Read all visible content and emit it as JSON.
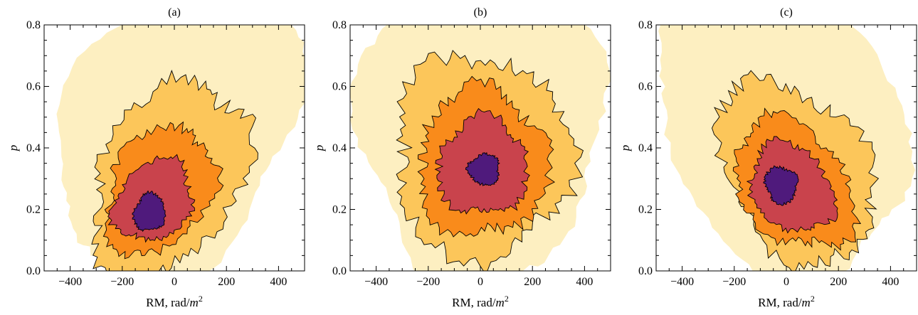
{
  "chart_data": [
    {
      "type": "contour",
      "title": "(a)",
      "xlabel": "RM, rad/m",
      "xlabel_sup": "2",
      "ylabel": "p",
      "xlim": [
        -500,
        500
      ],
      "ylim": [
        0,
        0.8
      ],
      "xticks": [
        "-400",
        "-200",
        "0",
        "200",
        "400"
      ],
      "yticks": [
        "0.0",
        "0.2",
        "0.4",
        "0.6",
        "0.8"
      ],
      "peak": {
        "x": -90,
        "y": 0.19
      },
      "levels": [
        {
          "level": 1,
          "color": "#fdefc1",
          "center": [
            20,
            0.46
          ],
          "radius": [
            470,
            0.46
          ],
          "tilt": 0.25
        },
        {
          "level": 2,
          "color": "#fcc65a",
          "center": [
            -20,
            0.3
          ],
          "radius": [
            300,
            0.3
          ],
          "tilt": 0.45
        },
        {
          "level": 3,
          "color": "#f98b1b",
          "center": [
            -60,
            0.26
          ],
          "radius": [
            210,
            0.2
          ],
          "tilt": 0.55
        },
        {
          "level": 4,
          "color": "#c9434c",
          "center": [
            -80,
            0.23
          ],
          "radius": [
            150,
            0.13
          ],
          "tilt": 0.6
        },
        {
          "level": 5,
          "color": "#4f1a7c",
          "center": [
            -95,
            0.19
          ],
          "radius": [
            60,
            0.06
          ],
          "tilt": 0.6
        }
      ]
    },
    {
      "type": "contour",
      "title": "(b)",
      "xlabel": "RM, rad/m",
      "xlabel_sup": "2",
      "ylabel": "p",
      "xlim": [
        -500,
        500
      ],
      "ylim": [
        0,
        0.8
      ],
      "xticks": [
        "-400",
        "-200",
        "0",
        "200",
        "400"
      ],
      "yticks": [
        "0.0",
        "0.2",
        "0.4",
        "0.6",
        "0.8"
      ],
      "peak": {
        "x": 10,
        "y": 0.33
      },
      "levels": [
        {
          "level": 1,
          "color": "#fdefc1",
          "center": [
            0,
            0.46
          ],
          "radius": [
            470,
            0.5
          ],
          "tilt": 0.0
        },
        {
          "level": 2,
          "color": "#fcc65a",
          "center": [
            10,
            0.37
          ],
          "radius": [
            340,
            0.33
          ],
          "tilt": 0.0
        },
        {
          "level": 3,
          "color": "#f98b1b",
          "center": [
            10,
            0.35
          ],
          "radius": [
            250,
            0.24
          ],
          "tilt": 0.0
        },
        {
          "level": 4,
          "color": "#c9434c",
          "center": [
            10,
            0.34
          ],
          "radius": [
            170,
            0.16
          ],
          "tilt": 0.0
        },
        {
          "level": 5,
          "color": "#4f1a7c",
          "center": [
            15,
            0.33
          ],
          "radius": [
            60,
            0.05
          ],
          "tilt": 0.0
        }
      ]
    },
    {
      "type": "contour",
      "title": "(c)",
      "xlabel": "RM, rad/m",
      "xlabel_sup": "2",
      "ylabel": "p",
      "xlim": [
        -500,
        500
      ],
      "ylim": [
        0,
        0.8
      ],
      "xticks": [
        "-400",
        "-200",
        "0",
        "200",
        "400"
      ],
      "yticks": [
        "0.0",
        "0.2",
        "0.4",
        "0.6",
        "0.8"
      ],
      "peak": {
        "x": -20,
        "y": 0.28
      },
      "levels": [
        {
          "level": 1,
          "color": "#fdefc1",
          "center": [
            -20,
            0.46
          ],
          "radius": [
            480,
            0.48
          ],
          "tilt": -0.2
        },
        {
          "level": 2,
          "color": "#fcc65a",
          "center": [
            40,
            0.32
          ],
          "radius": [
            300,
            0.28
          ],
          "tilt": -0.45
        },
        {
          "level": 3,
          "color": "#f98b1b",
          "center": [
            30,
            0.28
          ],
          "radius": [
            230,
            0.2
          ],
          "tilt": -0.55
        },
        {
          "level": 4,
          "color": "#c9434c",
          "center": [
            20,
            0.27
          ],
          "radius": [
            160,
            0.14
          ],
          "tilt": -0.6
        },
        {
          "level": 5,
          "color": "#4f1a7c",
          "center": [
            -20,
            0.28
          ],
          "radius": [
            60,
            0.06
          ],
          "tilt": -0.55
        }
      ]
    }
  ]
}
